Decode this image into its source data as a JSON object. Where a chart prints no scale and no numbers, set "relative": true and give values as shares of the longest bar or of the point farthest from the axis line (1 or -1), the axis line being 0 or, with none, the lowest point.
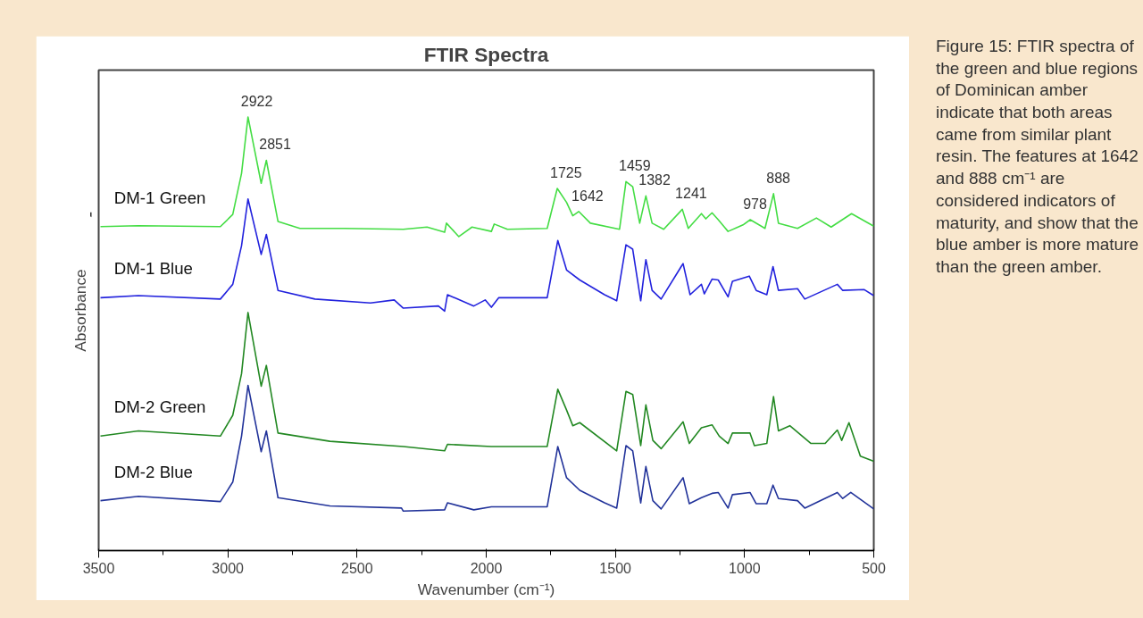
{
  "chart_data": {
    "type": "line",
    "title": "FTIR Spectra",
    "xlabel": "Wavenumber (cm⁻¹)",
    "ylabel": "Absorbance",
    "relative": true,
    "grid": false,
    "tick_labels": "x",
    "marker": "none",
    "line_style": "solid",
    "xlim": [
      3500,
      500
    ],
    "xticks": [
      3500,
      3000,
      2500,
      2000,
      1500,
      1000,
      500
    ],
    "series": [
      {
        "name": "DM-1 Green",
        "color": "#44dd44",
        "x": [
          3493,
          3346,
          3029,
          2981,
          2947,
          2922,
          2871,
          2851,
          2806,
          2721,
          2550,
          2321,
          2229,
          2161,
          2154,
          2106,
          2055,
          1980,
          1969,
          1918,
          1764,
          1725,
          1689,
          1665,
          1642,
          1597,
          1484,
          1459,
          1433,
          1406,
          1382,
          1358,
          1313,
          1241,
          1218,
          1167,
          1150,
          1126,
          1102,
          1064,
          1006,
          978,
          921,
          888,
          869,
          795,
          722,
          665,
          586,
          500
        ],
        "values": [
          0.747,
          0.749,
          0.747,
          0.775,
          0.87,
          1.0,
          0.847,
          0.9,
          0.759,
          0.743,
          0.743,
          0.741,
          0.746,
          0.734,
          0.755,
          0.724,
          0.746,
          0.736,
          0.753,
          0.741,
          0.743,
          0.835,
          0.803,
          0.772,
          0.782,
          0.755,
          0.741,
          0.851,
          0.839,
          0.755,
          0.818,
          0.755,
          0.741,
          0.787,
          0.743,
          0.777,
          0.765,
          0.779,
          0.763,
          0.736,
          0.751,
          0.763,
          0.743,
          0.823,
          0.755,
          0.743,
          0.767,
          0.746,
          0.777,
          0.748
        ]
      },
      {
        "name": "DM-1 Blue",
        "color": "#2222dd",
        "x": [
          3493,
          3346,
          3029,
          2981,
          2947,
          2922,
          2871,
          2851,
          2806,
          2663,
          2448,
          2356,
          2321,
          2185,
          2161,
          2150,
          2048,
          2004,
          1980,
          1952,
          1764,
          1723,
          1689,
          1638,
          1542,
          1495,
          1459,
          1433,
          1402,
          1382,
          1358,
          1323,
          1238,
          1211,
          1167,
          1156,
          1126,
          1102,
          1064,
          1047,
          982,
          955,
          914,
          890,
          869,
          795,
          767,
          641,
          620,
          538,
          500
        ],
        "values": [
          0.583,
          0.588,
          0.58,
          0.614,
          0.703,
          0.811,
          0.683,
          0.729,
          0.6,
          0.58,
          0.571,
          0.578,
          0.559,
          0.564,
          0.552,
          0.59,
          0.564,
          0.578,
          0.561,
          0.583,
          0.583,
          0.715,
          0.647,
          0.624,
          0.59,
          0.576,
          0.705,
          0.695,
          0.576,
          0.671,
          0.6,
          0.58,
          0.662,
          0.59,
          0.614,
          0.592,
          0.626,
          0.624,
          0.585,
          0.621,
          0.633,
          0.6,
          0.59,
          0.655,
          0.6,
          0.604,
          0.58,
          0.614,
          0.6,
          0.602,
          0.588
        ]
      },
      {
        "name": "DM-2 Green",
        "color": "#228822",
        "x": [
          3493,
          3346,
          3029,
          2981,
          2947,
          2922,
          2871,
          2851,
          2806,
          2605,
          2321,
          2161,
          2150,
          1980,
          1764,
          1723,
          1689,
          1665,
          1638,
          1495,
          1459,
          1433,
          1402,
          1382,
          1355,
          1323,
          1238,
          1214,
          1167,
          1126,
          1098,
          1064,
          1047,
          979,
          962,
          914,
          888,
          869,
          825,
          743,
          688,
          641,
          624,
          596,
          552,
          500
        ],
        "values": [
          0.264,
          0.276,
          0.264,
          0.312,
          0.408,
          0.549,
          0.379,
          0.427,
          0.271,
          0.252,
          0.24,
          0.23,
          0.245,
          0.24,
          0.24,
          0.372,
          0.324,
          0.288,
          0.295,
          0.23,
          0.367,
          0.36,
          0.242,
          0.336,
          0.254,
          0.235,
          0.297,
          0.247,
          0.283,
          0.29,
          0.264,
          0.247,
          0.271,
          0.271,
          0.242,
          0.247,
          0.355,
          0.276,
          0.288,
          0.247,
          0.247,
          0.278,
          0.254,
          0.295,
          0.218,
          0.206
        ]
      },
      {
        "name": "DM-2 Blue",
        "color": "#22339a",
        "x": [
          3493,
          3346,
          3029,
          2981,
          2947,
          2922,
          2871,
          2851,
          2806,
          2605,
          2328,
          2321,
          2161,
          2150,
          2048,
          1980,
          1764,
          1723,
          1689,
          1638,
          1542,
          1495,
          1459,
          1433,
          1402,
          1382,
          1355,
          1323,
          1238,
          1214,
          1167,
          1126,
          1102,
          1064,
          1047,
          979,
          955,
          914,
          890,
          869,
          795,
          767,
          641,
          620,
          589,
          500
        ],
        "values": [
          0.115,
          0.125,
          0.113,
          0.158,
          0.264,
          0.381,
          0.228,
          0.276,
          0.122,
          0.103,
          0.098,
          0.091,
          0.094,
          0.11,
          0.094,
          0.101,
          0.101,
          0.24,
          0.168,
          0.139,
          0.11,
          0.098,
          0.242,
          0.23,
          0.11,
          0.194,
          0.115,
          0.096,
          0.168,
          0.108,
          0.122,
          0.132,
          0.134,
          0.098,
          0.129,
          0.134,
          0.108,
          0.108,
          0.151,
          0.12,
          0.115,
          0.098,
          0.134,
          0.12,
          0.134,
          0.096
        ]
      }
    ],
    "annotations": [
      {
        "text": "2922",
        "x": 2922,
        "y": 1.0
      },
      {
        "text": "2851",
        "x": 2851,
        "y": 0.9
      },
      {
        "text": "1725",
        "x": 1725,
        "y": 0.835
      },
      {
        "text": "1642",
        "x": 1642,
        "y": 0.782
      },
      {
        "text": "1459",
        "x": 1459,
        "y": 0.851
      },
      {
        "text": "1382",
        "x": 1382,
        "y": 0.818
      },
      {
        "text": "1241",
        "x": 1241,
        "y": 0.787
      },
      {
        "text": "978",
        "x": 978,
        "y": 0.763
      },
      {
        "text": "888",
        "x": 888,
        "y": 0.823
      },
      "Figure 15: FTIR spectra of the green and blue regions of Dominican amber indicate that both areas came from similar plant resin. The features at 1642 and 888 cm⁻¹ are considered indicators of maturity, and show that the blue amber is more mature than the green amber."
    ]
  }
}
